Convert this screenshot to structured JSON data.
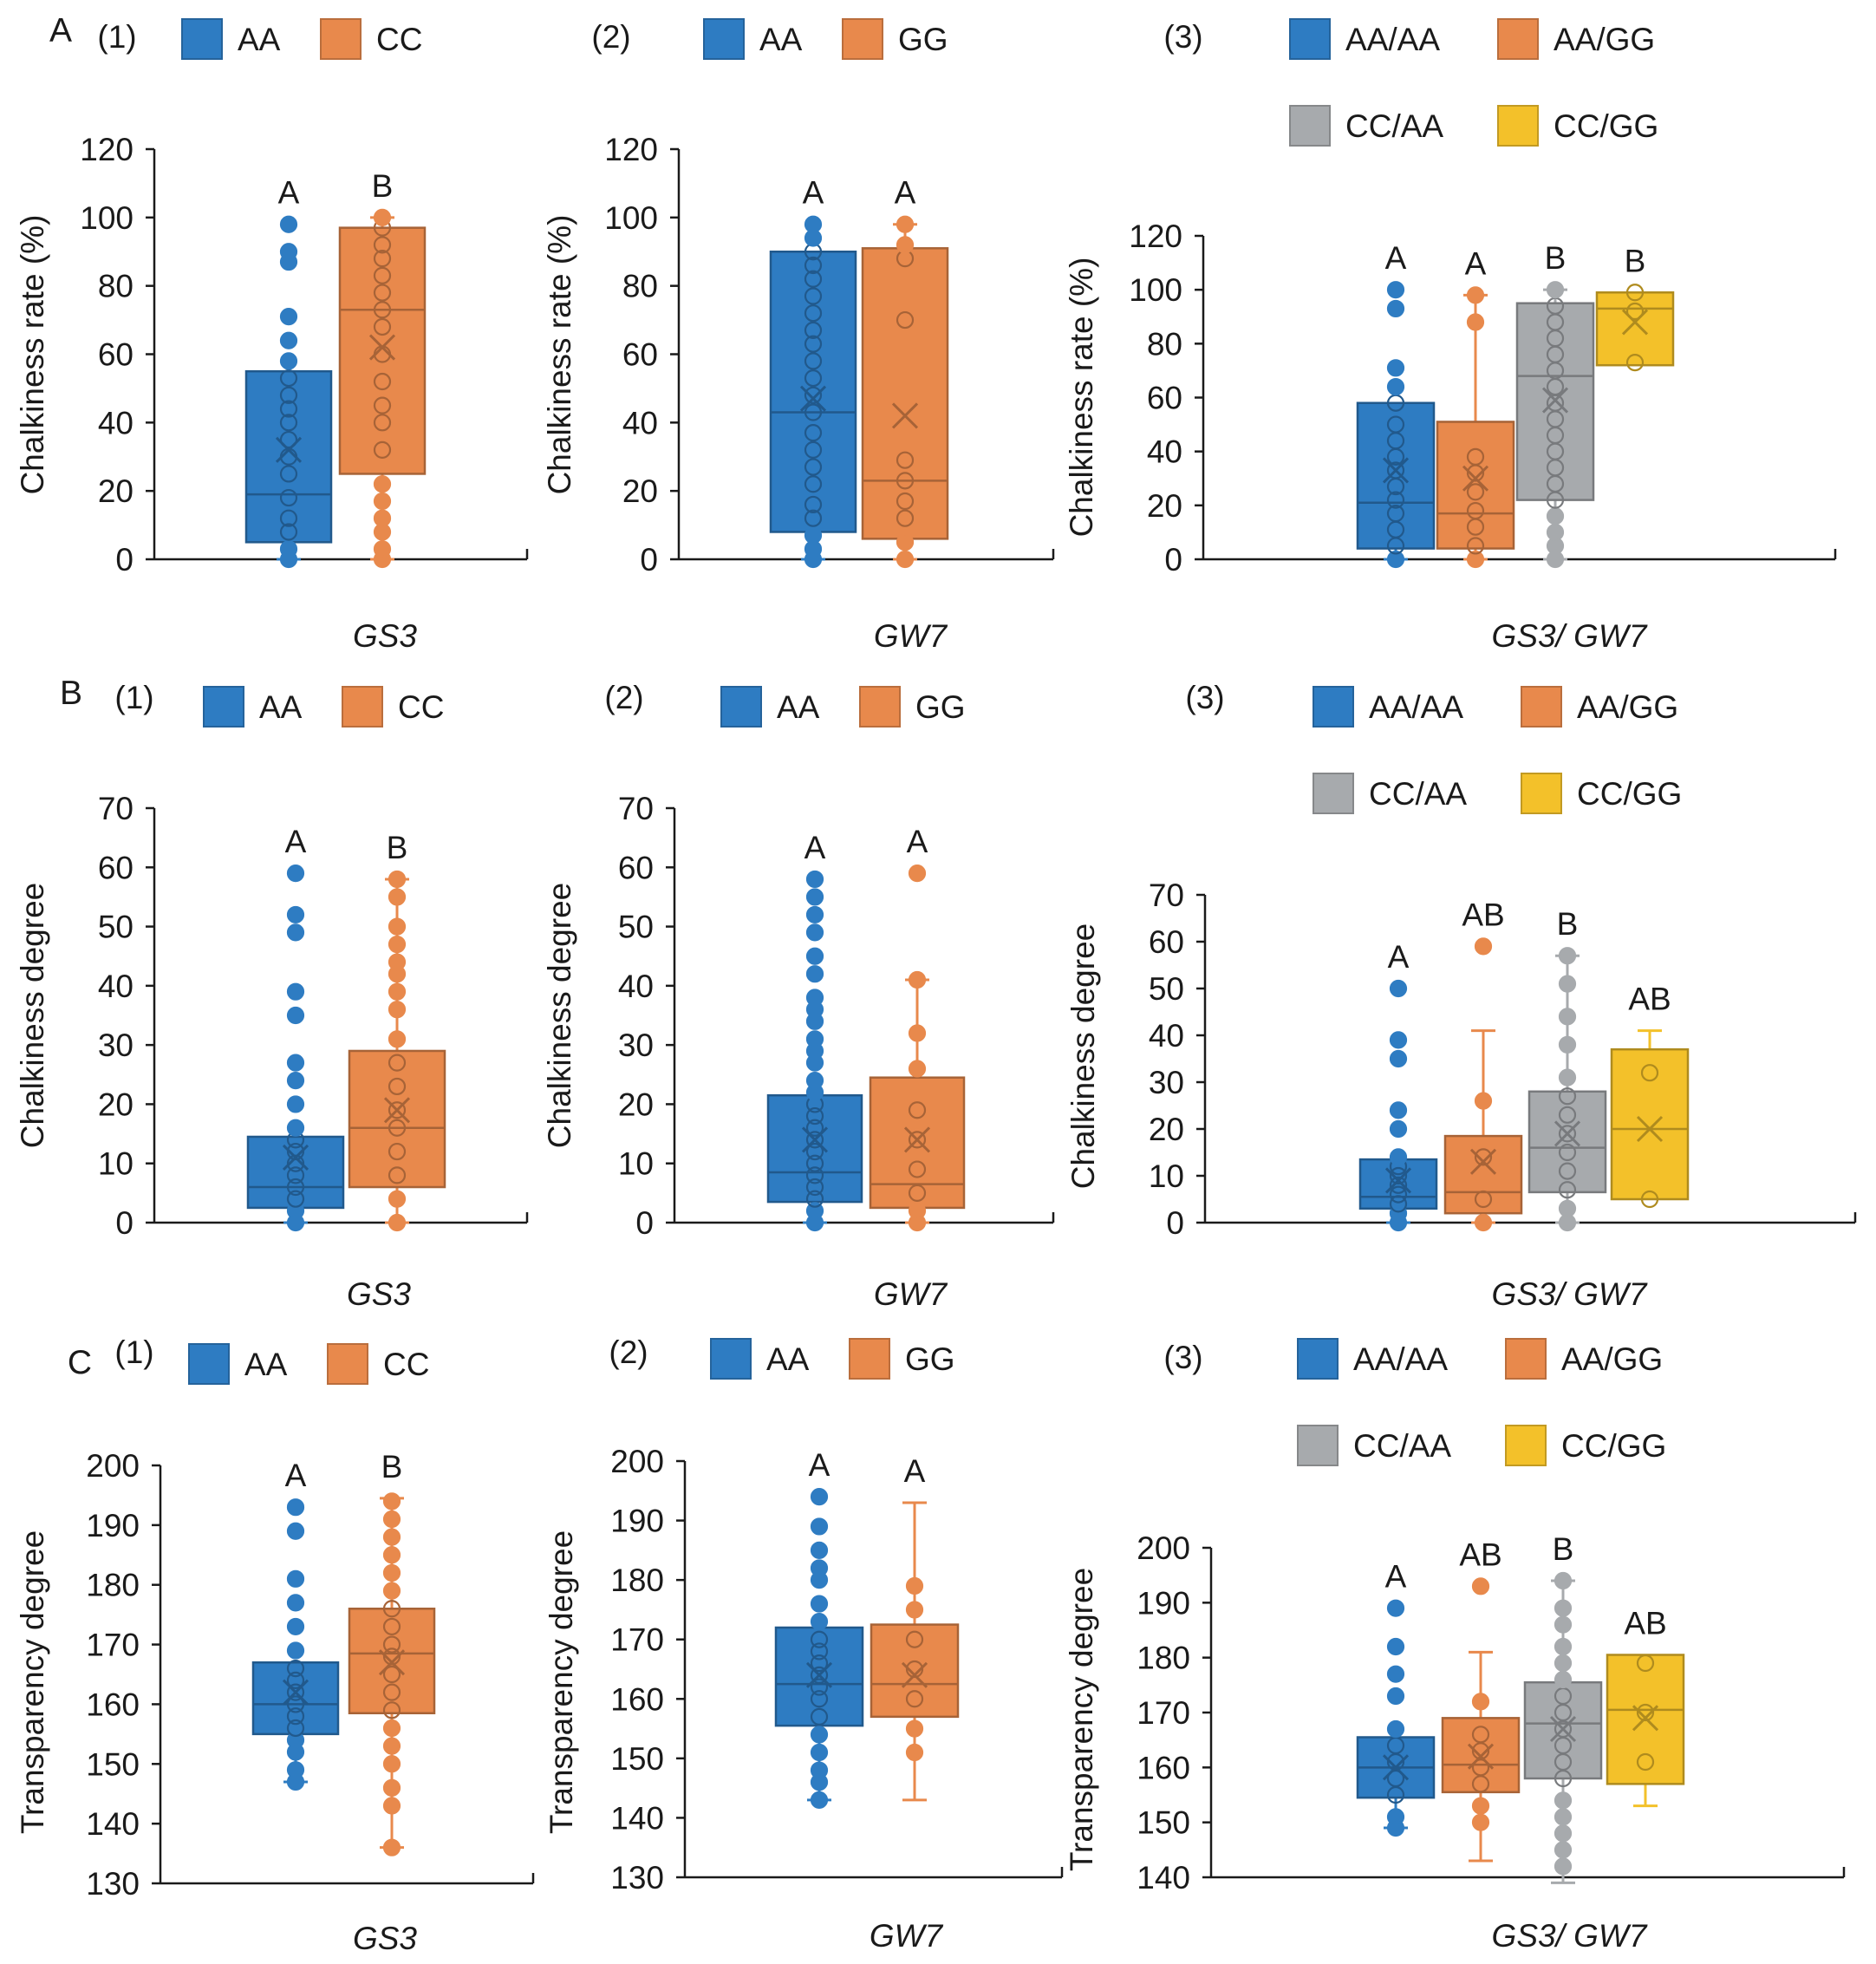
{
  "colors": {
    "AA": "#2e7cc2",
    "CC": "#e8894c",
    "GG": "#e8894c",
    "AA/AA": "#2e7cc2",
    "AA/GG": "#e8894c",
    "CC/AA": "#a7aaad",
    "CC/GG": "#f3c12a",
    "axis": "#1a1a1a"
  },
  "rows": [
    {
      "label": "A",
      "ylabel": "Chalkiness rate (%)",
      "panels": [
        {
          "number": "(1)",
          "xlabel": "GS3",
          "legend": [
            "AA",
            "CC"
          ],
          "chart_data": {
            "type": "box",
            "ylim": [
              0,
              120
            ],
            "yticks": [
              0,
              20,
              40,
              60,
              80,
              100,
              120
            ],
            "series": [
              {
                "name": "AA",
                "q1": 5,
                "median": 19,
                "q3": 55,
                "mean": 32,
                "whisker_low": 0,
                "whisker_high": 55,
                "letter": "A",
                "points": [
                  0,
                  3,
                  8,
                  12,
                  18,
                  25,
                  30,
                  35,
                  40,
                  44,
                  48,
                  53,
                  58,
                  64,
                  71,
                  87,
                  90,
                  98
                ]
              },
              {
                "name": "CC",
                "q1": 25,
                "median": 73,
                "q3": 97,
                "mean": 62,
                "whisker_low": 0,
                "whisker_high": 100,
                "letter": "B",
                "points": [
                  0,
                  3,
                  8,
                  12,
                  17,
                  22,
                  32,
                  40,
                  45,
                  52,
                  60,
                  68,
                  73,
                  78,
                  83,
                  88,
                  92,
                  97,
                  100
                ]
              }
            ]
          }
        },
        {
          "number": "(2)",
          "xlabel": "GW7",
          "legend": [
            "AA",
            "GG"
          ],
          "chart_data": {
            "type": "box",
            "ylim": [
              0,
              120
            ],
            "yticks": [
              0,
              20,
              40,
              60,
              80,
              100,
              120
            ],
            "series": [
              {
                "name": "AA",
                "q1": 8,
                "median": 43,
                "q3": 90,
                "mean": 47,
                "whisker_low": 0,
                "whisker_high": 90,
                "letter": "A",
                "points": [
                  0,
                  3,
                  7,
                  12,
                  16,
                  22,
                  27,
                  32,
                  37,
                  43,
                  48,
                  53,
                  58,
                  63,
                  67,
                  72,
                  77,
                  82,
                  86,
                  90,
                  94,
                  98
                ]
              },
              {
                "name": "GG",
                "q1": 6,
                "median": 23,
                "q3": 91,
                "mean": 42,
                "whisker_low": 0,
                "whisker_high": 98,
                "letter": "A",
                "points": [
                  0,
                  5,
                  12,
                  17,
                  23,
                  29,
                  70,
                  88,
                  92,
                  98
                ]
              }
            ]
          }
        },
        {
          "number": "(3)",
          "xlabel": "GS3/ GW7",
          "legend": [
            "AA/AA",
            "AA/GG",
            "CC/AA",
            "CC/GG"
          ],
          "chart_data": {
            "type": "box",
            "ylim": [
              0,
              120
            ],
            "yticks": [
              0,
              20,
              40,
              60,
              80,
              100,
              120
            ],
            "series": [
              {
                "name": "AA/AA",
                "q1": 4,
                "median": 21,
                "q3": 58,
                "mean": 33,
                "whisker_low": 0,
                "whisker_high": 58,
                "letter": "A",
                "points": [
                  0,
                  5,
                  11,
                  17,
                  22,
                  27,
                  33,
                  38,
                  44,
                  50,
                  58,
                  64,
                  71,
                  93,
                  100
                ]
              },
              {
                "name": "AA/GG",
                "q1": 4,
                "median": 17,
                "q3": 51,
                "mean": 30,
                "whisker_low": 0,
                "whisker_high": 98,
                "letter": "A",
                "points": [
                  0,
                  5,
                  12,
                  18,
                  25,
                  32,
                  38,
                  88,
                  98
                ]
              },
              {
                "name": "CC/AA",
                "q1": 22,
                "median": 68,
                "q3": 95,
                "mean": 59,
                "whisker_low": 0,
                "whisker_high": 100,
                "letter": "B",
                "points": [
                  0,
                  5,
                  10,
                  16,
                  22,
                  28,
                  34,
                  40,
                  46,
                  52,
                  58,
                  64,
                  70,
                  76,
                  82,
                  88,
                  94,
                  100
                ]
              },
              {
                "name": "CC/GG",
                "q1": 72,
                "median": 93,
                "q3": 99,
                "mean": 88,
                "whisker_low": 72,
                "whisker_high": 99,
                "letter": "B",
                "points": [
                  73,
                  92,
                  99
                ]
              }
            ]
          }
        }
      ]
    },
    {
      "label": "B",
      "ylabel": "Chalkiness degree",
      "panels": [
        {
          "number": "(1)",
          "xlabel": "GS3",
          "legend": [
            "AA",
            "CC"
          ],
          "chart_data": {
            "type": "box",
            "ylim": [
              0,
              70
            ],
            "yticks": [
              0,
              10,
              20,
              30,
              40,
              50,
              60,
              70
            ],
            "series": [
              {
                "name": "AA",
                "q1": 2.5,
                "median": 6,
                "q3": 14.5,
                "mean": 11,
                "whisker_low": 0,
                "whisker_high": 14.5,
                "letter": "A",
                "points": [
                  0,
                  2,
                  4,
                  6,
                  8,
                  10,
                  12,
                  14,
                  16,
                  20,
                  24,
                  27,
                  35,
                  39,
                  49,
                  52,
                  59
                ]
              },
              {
                "name": "CC",
                "q1": 6,
                "median": 16,
                "q3": 29,
                "mean": 19,
                "whisker_low": 0,
                "whisker_high": 58,
                "letter": "B",
                "points": [
                  0,
                  4,
                  8,
                  12,
                  16,
                  19,
                  23,
                  27,
                  31,
                  36,
                  39,
                  42,
                  44,
                  47,
                  50,
                  55,
                  58
                ]
              }
            ]
          }
        },
        {
          "number": "(2)",
          "xlabel": "GW7",
          "legend": [
            "AA",
            "GG"
          ],
          "chart_data": {
            "type": "box",
            "ylim": [
              0,
              70
            ],
            "yticks": [
              0,
              10,
              20,
              30,
              40,
              50,
              60,
              70
            ],
            "series": [
              {
                "name": "AA",
                "q1": 3.5,
                "median": 8.5,
                "q3": 21.5,
                "mean": 14,
                "whisker_low": 0,
                "whisker_high": 21.5,
                "letter": "A",
                "points": [
                  0,
                  2,
                  4,
                  6,
                  8,
                  10,
                  12,
                  14,
                  16,
                  18,
                  20,
                  22,
                  24,
                  27,
                  29,
                  31,
                  34,
                  36,
                  38,
                  42,
                  45,
                  49,
                  52,
                  55,
                  58
                ]
              },
              {
                "name": "GG",
                "q1": 2.5,
                "median": 6.5,
                "q3": 24.5,
                "mean": 14,
                "whisker_low": 0,
                "whisker_high": 41,
                "letter": "A",
                "points": [
                  0,
                  2,
                  5,
                  9,
                  14,
                  19,
                  26,
                  32,
                  41,
                  59
                ]
              }
            ]
          }
        },
        {
          "number": "(3)",
          "xlabel": "GS3/ GW7",
          "legend": [
            "AA/AA",
            "AA/GG",
            "CC/AA",
            "CC/GG"
          ],
          "chart_data": {
            "type": "box",
            "ylim": [
              0,
              70
            ],
            "yticks": [
              0,
              10,
              20,
              30,
              40,
              50,
              60,
              70
            ],
            "series": [
              {
                "name": "AA/AA",
                "q1": 3,
                "median": 5.5,
                "q3": 13.5,
                "mean": 9,
                "whisker_low": 0,
                "whisker_high": 13.5,
                "letter": "A",
                "points": [
                  0,
                  2,
                  4,
                  6,
                  8,
                  10,
                  12,
                  14,
                  20,
                  24,
                  35,
                  39,
                  50
                ]
              },
              {
                "name": "AA/GG",
                "q1": 2,
                "median": 6.5,
                "q3": 18.5,
                "mean": 13,
                "whisker_low": 0,
                "whisker_high": 41,
                "letter": "AB",
                "points": [
                  0,
                  5,
                  14,
                  26,
                  59
                ]
              },
              {
                "name": "CC/AA",
                "q1": 6.5,
                "median": 16,
                "q3": 28,
                "mean": 19,
                "whisker_low": 0,
                "whisker_high": 57,
                "letter": "B",
                "points": [
                  0,
                  3,
                  7,
                  11,
                  15,
                  19,
                  23,
                  27,
                  31,
                  38,
                  44,
                  51,
                  57
                ]
              },
              {
                "name": "CC/GG",
                "q1": 5,
                "median": 20,
                "q3": 37,
                "mean": 20,
                "whisker_low": 5,
                "whisker_high": 41,
                "letter": "AB",
                "points": [
                  5,
                  32
                ]
              }
            ]
          }
        }
      ]
    },
    {
      "label": "C",
      "ylabel": "Transparency degree",
      "panels": [
        {
          "number": "(1)",
          "xlabel": "GS3",
          "legend": [
            "AA",
            "CC"
          ],
          "chart_data": {
            "type": "box",
            "ylim": [
              130,
              200
            ],
            "yticks": [
              130,
              140,
              150,
              160,
              170,
              180,
              190,
              200
            ],
            "series": [
              {
                "name": "AA",
                "q1": 155,
                "median": 160,
                "q3": 167,
                "mean": 162,
                "whisker_low": 147,
                "whisker_high": 167,
                "letter": "A",
                "points": [
                  147,
                  149,
                  152,
                  154,
                  156,
                  158,
                  160,
                  162,
                  164,
                  166,
                  169,
                  173,
                  177,
                  181,
                  189,
                  193
                ]
              },
              {
                "name": "CC",
                "q1": 158.5,
                "median": 168.5,
                "q3": 176,
                "mean": 167,
                "whisker_low": 136,
                "whisker_high": 194.5,
                "letter": "B",
                "points": [
                  136,
                  143,
                  146,
                  150,
                  153,
                  156,
                  159,
                  162,
                  165,
                  168,
                  170,
                  173,
                  176,
                  179,
                  182,
                  185,
                  188,
                  191,
                  194
                ]
              }
            ]
          }
        },
        {
          "number": "(2)",
          "xlabel": "GW7",
          "legend": [
            "AA",
            "GG"
          ],
          "chart_data": {
            "type": "box",
            "ylim": [
              130,
              200
            ],
            "yticks": [
              130,
              140,
              150,
              160,
              170,
              180,
              190,
              200
            ],
            "series": [
              {
                "name": "AA",
                "q1": 155.5,
                "median": 162.5,
                "q3": 172,
                "mean": 164,
                "whisker_low": 143,
                "whisker_high": 172,
                "letter": "A",
                "points": [
                  143,
                  146,
                  148,
                  151,
                  154,
                  157,
                  160,
                  162,
                  164,
                  166,
                  168,
                  170,
                  173,
                  176,
                  180,
                  182,
                  185,
                  189,
                  194
                ]
              },
              {
                "name": "GG",
                "q1": 157,
                "median": 162.5,
                "q3": 172.5,
                "mean": 164,
                "whisker_low": 143,
                "whisker_high": 193,
                "letter": "A",
                "points": [
                  151,
                  155,
                  160,
                  165,
                  170,
                  175,
                  179
                ]
              }
            ]
          }
        },
        {
          "number": "(3)",
          "xlabel": "GS3/ GW7",
          "legend": [
            "AA/AA",
            "AA/GG",
            "CC/AA",
            "CC/GG"
          ],
          "chart_data": {
            "type": "box",
            "ylim": [
              140,
              200
            ],
            "yticks": [
              140,
              150,
              160,
              170,
              180,
              190,
              200
            ],
            "series": [
              {
                "name": "AA/AA",
                "q1": 154.5,
                "median": 160,
                "q3": 165.5,
                "mean": 160,
                "whisker_low": 149,
                "whisker_high": 165.5,
                "letter": "A",
                "points": [
                  149,
                  151,
                  155,
                  158,
                  161,
                  164,
                  167,
                  173,
                  177,
                  182,
                  189
                ]
              },
              {
                "name": "AA/GG",
                "q1": 155.5,
                "median": 160.5,
                "q3": 169,
                "mean": 162,
                "whisker_low": 143,
                "whisker_high": 181,
                "letter": "AB",
                "points": [
                  150,
                  153,
                  157,
                  160,
                  163,
                  166,
                  172,
                  193
                ]
              },
              {
                "name": "CC/AA",
                "q1": 158,
                "median": 168,
                "q3": 175.5,
                "mean": 167,
                "whisker_low": 139,
                "whisker_high": 194,
                "letter": "B",
                "points": [
                  142,
                  145,
                  148,
                  151,
                  154,
                  158,
                  161,
                  164,
                  167,
                  170,
                  173,
                  176,
                  179,
                  182,
                  186,
                  189,
                  194
                ]
              },
              {
                "name": "CC/GG",
                "q1": 157,
                "median": 170.5,
                "q3": 180.5,
                "mean": 169,
                "whisker_low": 153,
                "whisker_high": 180.5,
                "letter": "AB",
                "points": [
                  161,
                  170,
                  179
                ]
              }
            ]
          }
        }
      ]
    }
  ]
}
